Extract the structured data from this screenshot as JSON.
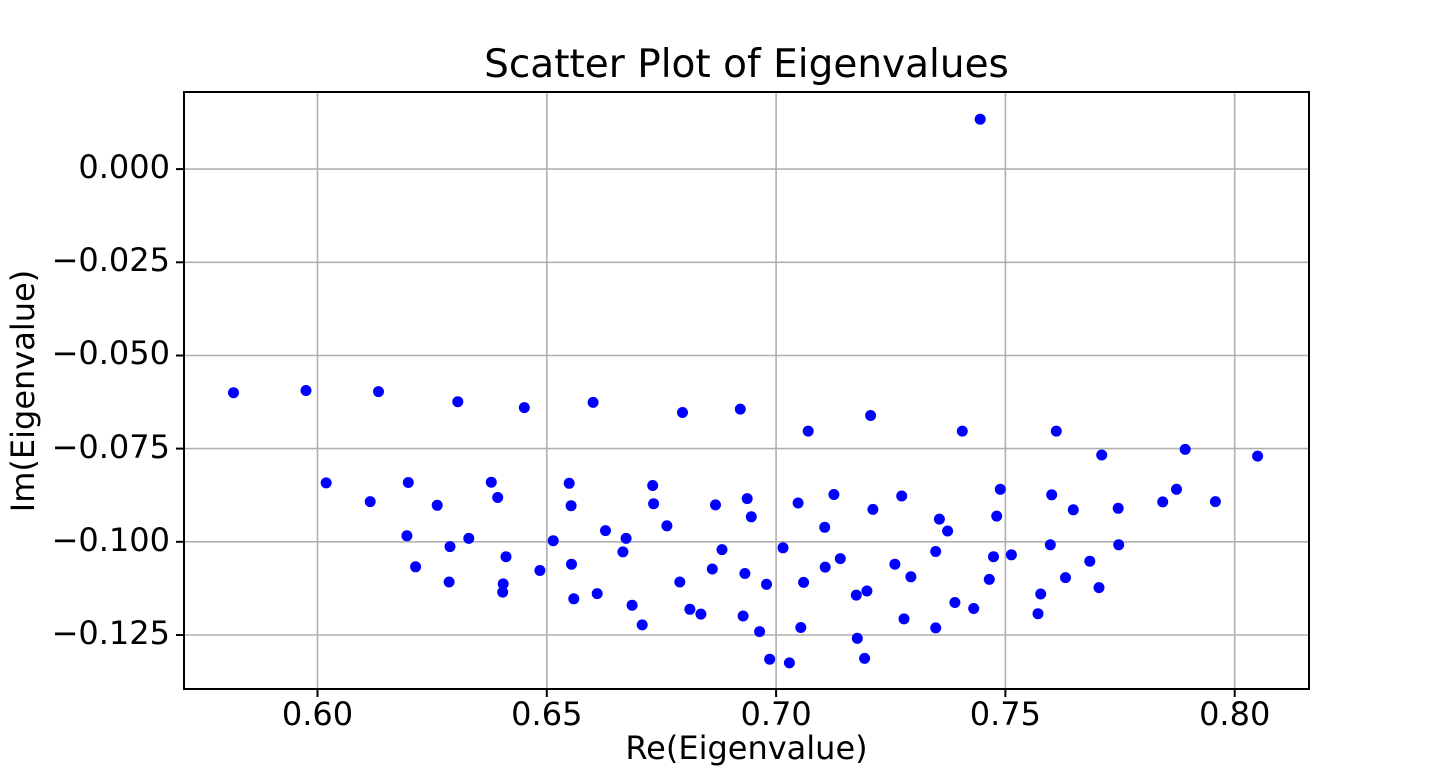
{
  "chart_data": {
    "type": "scatter",
    "title": "Scatter Plot of Eigenvalues",
    "xlabel": "Re(Eigenvalue)",
    "ylabel": "Im(Eigenvalue)",
    "legend": null,
    "grid": true,
    "grid_color": "#b0b0b0",
    "axis_color": "#000000",
    "background_color": "#ffffff",
    "marker_color": "#0000ff",
    "marker_radius_px": 5.5,
    "xlim": [
      0.5709,
      0.8162
    ],
    "ylim": [
      -0.1395,
      0.0207
    ],
    "x_ticks": [
      {
        "value": 0.6,
        "label": "0.60"
      },
      {
        "value": 0.65,
        "label": "0.65"
      },
      {
        "value": 0.7,
        "label": "0.70"
      },
      {
        "value": 0.75,
        "label": "0.75"
      },
      {
        "value": 0.8,
        "label": "0.80"
      }
    ],
    "y_ticks": [
      {
        "value": 0.0,
        "label": "0.000"
      },
      {
        "value": -0.025,
        "label": "−0.025"
      },
      {
        "value": -0.05,
        "label": "−0.050"
      },
      {
        "value": -0.075,
        "label": "−0.075"
      },
      {
        "value": -0.1,
        "label": "−0.100"
      },
      {
        "value": -0.125,
        "label": "−0.125"
      }
    ],
    "points": [
      [
        0.5817,
        -0.06
      ],
      [
        0.5975,
        -0.0594
      ],
      [
        0.6133,
        -0.0597
      ],
      [
        0.6306,
        -0.0624
      ],
      [
        0.6451,
        -0.064
      ],
      [
        0.6019,
        -0.0842
      ],
      [
        0.6115,
        -0.0892
      ],
      [
        0.6198,
        -0.0841
      ],
      [
        0.6261,
        -0.0902
      ],
      [
        0.6379,
        -0.084
      ],
      [
        0.6393,
        -0.0881
      ],
      [
        0.6601,
        -0.0626
      ],
      [
        0.6796,
        -0.0653
      ],
      [
        0.6922,
        -0.0644
      ],
      [
        0.707,
        -0.0703
      ],
      [
        0.7206,
        -0.0661
      ],
      [
        0.6549,
        -0.0843
      ],
      [
        0.6553,
        -0.0903
      ],
      [
        0.6731,
        -0.0849
      ],
      [
        0.6733,
        -0.0898
      ],
      [
        0.6868,
        -0.0901
      ],
      [
        0.6937,
        -0.0884
      ],
      [
        0.6946,
        -0.0933
      ],
      [
        0.7048,
        -0.0896
      ],
      [
        0.7126,
        -0.0873
      ],
      [
        0.7211,
        -0.0913
      ],
      [
        0.7274,
        -0.0877
      ],
      [
        0.7406,
        -0.0703
      ],
      [
        0.7611,
        -0.0703
      ],
      [
        0.771,
        -0.0767
      ],
      [
        0.7892,
        -0.0752
      ],
      [
        0.805,
        -0.077
      ],
      [
        0.7489,
        -0.0859
      ],
      [
        0.7601,
        -0.0874
      ],
      [
        0.7648,
        -0.0914
      ],
      [
        0.7746,
        -0.091
      ],
      [
        0.7843,
        -0.0893
      ],
      [
        0.7873,
        -0.0859
      ],
      [
        0.7958,
        -0.0892
      ],
      [
        0.6195,
        -0.0984
      ],
      [
        0.6289,
        -0.1013
      ],
      [
        0.633,
        -0.0991
      ],
      [
        0.6214,
        -0.1067
      ],
      [
        0.6287,
        -0.1108
      ],
      [
        0.6411,
        -0.104
      ],
      [
        0.6405,
        -0.1113
      ],
      [
        0.6404,
        -0.1135
      ],
      [
        0.6485,
        -0.1077
      ],
      [
        0.6514,
        -0.0997
      ],
      [
        0.6628,
        -0.097
      ],
      [
        0.6673,
        -0.0991
      ],
      [
        0.6666,
        -0.1027
      ],
      [
        0.6762,
        -0.0957
      ],
      [
        0.6554,
        -0.106
      ],
      [
        0.6559,
        -0.1153
      ],
      [
        0.661,
        -0.1139
      ],
      [
        0.6686,
        -0.117
      ],
      [
        0.6708,
        -0.1223
      ],
      [
        0.679,
        -0.1108
      ],
      [
        0.6812,
        -0.1181
      ],
      [
        0.6836,
        -0.1194
      ],
      [
        0.6861,
        -0.1073
      ],
      [
        0.6882,
        -0.1021
      ],
      [
        0.6932,
        -0.1085
      ],
      [
        0.6928,
        -0.1199
      ],
      [
        0.6964,
        -0.1241
      ],
      [
        0.6979,
        -0.1114
      ],
      [
        0.6986,
        -0.1315
      ],
      [
        0.7029,
        -0.1325
      ],
      [
        0.7015,
        -0.1016
      ],
      [
        0.706,
        -0.1109
      ],
      [
        0.7054,
        -0.123
      ],
      [
        0.7106,
        -0.0961
      ],
      [
        0.7107,
        -0.1068
      ],
      [
        0.714,
        -0.1045
      ],
      [
        0.7175,
        -0.1143
      ],
      [
        0.7198,
        -0.1132
      ],
      [
        0.7177,
        -0.1259
      ],
      [
        0.7193,
        -0.1313
      ],
      [
        0.7259,
        -0.106
      ],
      [
        0.7294,
        -0.1094
      ],
      [
        0.7279,
        -0.1207
      ],
      [
        0.7356,
        -0.0939
      ],
      [
        0.7374,
        -0.0971
      ],
      [
        0.7348,
        -0.1026
      ],
      [
        0.7481,
        -0.0931
      ],
      [
        0.7474,
        -0.104
      ],
      [
        0.7513,
        -0.1035
      ],
      [
        0.7465,
        -0.1101
      ],
      [
        0.739,
        -0.1163
      ],
      [
        0.7431,
        -0.1179
      ],
      [
        0.7348,
        -0.1231
      ],
      [
        0.7598,
        -0.1008
      ],
      [
        0.7747,
        -0.1008
      ],
      [
        0.7684,
        -0.1052
      ],
      [
        0.7631,
        -0.1096
      ],
      [
        0.7704,
        -0.1123
      ],
      [
        0.7577,
        -0.114
      ],
      [
        0.7571,
        -0.1193
      ],
      [
        0.7445,
        0.0134
      ]
    ]
  }
}
